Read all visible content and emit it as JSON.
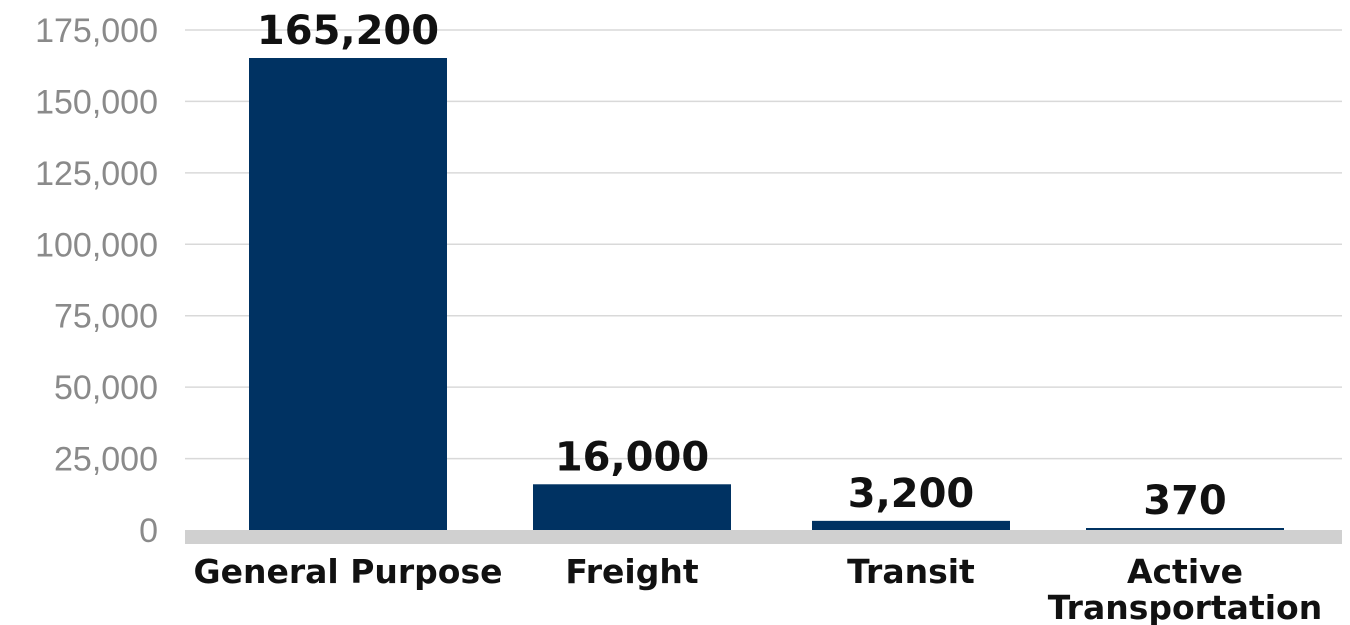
{
  "chart_data": {
    "type": "bar",
    "categories": [
      "General Purpose",
      "Freight",
      "Transit",
      "Active Transportation"
    ],
    "category_lines": [
      [
        "General Purpose"
      ],
      [
        "Freight"
      ],
      [
        "Transit"
      ],
      [
        "Active",
        "Transportation"
      ]
    ],
    "values": [
      165200,
      16000,
      3200,
      370
    ],
    "data_labels": [
      "165,200",
      "16,000",
      "3,200",
      "370"
    ],
    "ylim": [
      0,
      175000
    ],
    "yticks": [
      0,
      25000,
      50000,
      75000,
      100000,
      125000,
      150000,
      175000
    ],
    "ytick_labels": [
      "0",
      "25,000",
      "50,000",
      "75,000",
      "100,000",
      "125,000",
      "150,000",
      "175,000"
    ],
    "title": "",
    "xlabel": "",
    "ylabel": "",
    "grid": true,
    "legend": "none",
    "colors": {
      "bar": "#003262",
      "grid": "#d9d9d9",
      "baseline": "#d0d0d0",
      "tick_text": "#8a8a8a",
      "label_text": "#111111"
    }
  }
}
